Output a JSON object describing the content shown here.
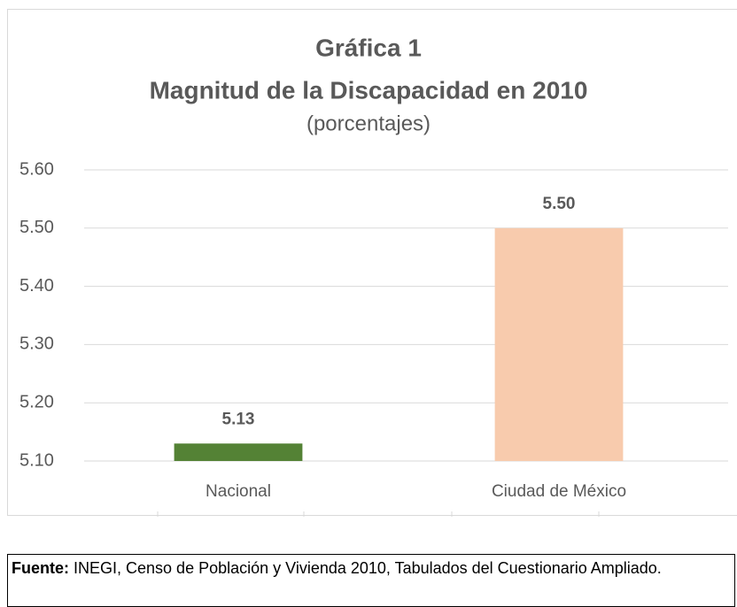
{
  "chart_data": {
    "type": "bar",
    "title": [
      "Gráfica 1",
      "Magnitud de la Discapacidad en 2010"
    ],
    "subtitle": "(porcentajes)",
    "categories": [
      "Nacional",
      "Ciudad de México"
    ],
    "series": [
      {
        "name": null,
        "values": [
          5.13,
          5.5
        ],
        "value_labels": [
          "5.13",
          "5.50"
        ],
        "colors": [
          "#548235",
          "#f8cbad"
        ]
      }
    ],
    "ylim": [
      5.1,
      5.6
    ],
    "yticks": [
      {
        "value": 5.1,
        "label": "5.10"
      },
      {
        "value": 5.2,
        "label": "5.20"
      },
      {
        "value": 5.3,
        "label": "5.30"
      },
      {
        "value": 5.4,
        "label": "5.40"
      },
      {
        "value": 5.5,
        "label": "5.50"
      },
      {
        "value": 5.6,
        "label": "5.60"
      }
    ],
    "grid": true
  },
  "source": {
    "label": "Fuente:",
    "text": "INEGI, Censo de Población y Vivienda 2010, Tabulados del Cuestionario Ampliado."
  }
}
